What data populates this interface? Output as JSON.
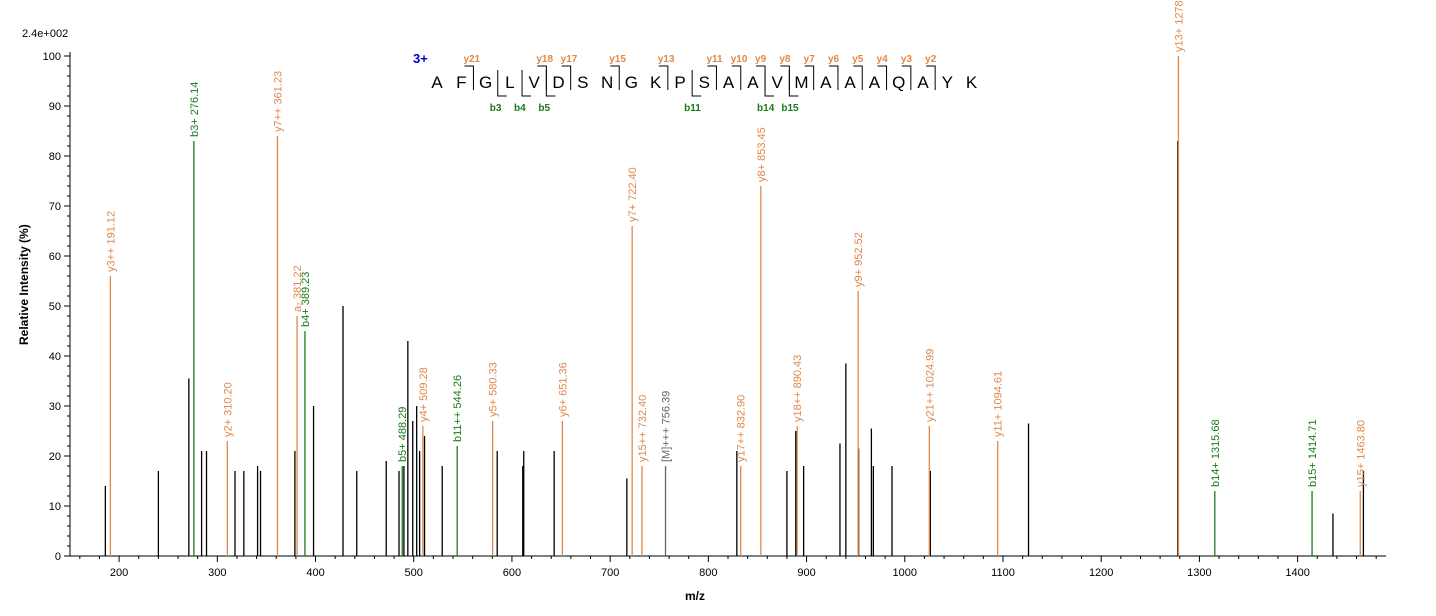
{
  "chart_data": {
    "type": "bar",
    "scale_label": "2.4e+002",
    "xlabel": "m/z",
    "ylabel": "Relative   Intensity (%)",
    "xlim": [
      150,
      1490
    ],
    "ylim": [
      0,
      100
    ],
    "x_ticks_major": [
      200,
      300,
      400,
      500,
      600,
      700,
      800,
      900,
      1000,
      1100,
      1200,
      1300,
      1400
    ],
    "y_ticks_major": [
      0,
      10,
      20,
      30,
      40,
      50,
      60,
      70,
      80,
      90,
      100
    ],
    "colors": {
      "y_ion": "#e0884a",
      "b_ion": "#1a7a1a",
      "other_ion": "#666666",
      "unassigned": "#000000",
      "charge_state": "#0000cc"
    },
    "peptide": {
      "charge": "3+",
      "sequence": [
        "A",
        "F",
        "G",
        "L",
        "V",
        "D",
        "S",
        "N",
        "G",
        "K",
        "P",
        "S",
        "A",
        "A",
        "V",
        "M",
        "A",
        "A",
        "A",
        "Q",
        "A",
        "Y",
        "K"
      ],
      "y_ions": [
        {
          "pos": 2,
          "label": "y21"
        },
        {
          "pos": 5,
          "label": "y18"
        },
        {
          "pos": 6,
          "label": "y17"
        },
        {
          "pos": 8,
          "label": "y15"
        },
        {
          "pos": 10,
          "label": "y13"
        },
        {
          "pos": 12,
          "label": "y11"
        },
        {
          "pos": 13,
          "label": "y10"
        },
        {
          "pos": 14,
          "label": "y9"
        },
        {
          "pos": 15,
          "label": "y8"
        },
        {
          "pos": 16,
          "label": "y7"
        },
        {
          "pos": 17,
          "label": "y6"
        },
        {
          "pos": 18,
          "label": "y5"
        },
        {
          "pos": 19,
          "label": "y4"
        },
        {
          "pos": 20,
          "label": "y3"
        },
        {
          "pos": 21,
          "label": "y2"
        }
      ],
      "b_ions": [
        {
          "pos": 3,
          "label": "b3"
        },
        {
          "pos": 4,
          "label": "b4"
        },
        {
          "pos": 5,
          "label": "b5"
        },
        {
          "pos": 11,
          "label": "b11"
        },
        {
          "pos": 14,
          "label": "b14"
        },
        {
          "pos": 15,
          "label": "b15"
        }
      ]
    },
    "labeled_peaks": [
      {
        "mz": 191.12,
        "intensity": 56,
        "ion": "y",
        "label": "y3++ 191.12"
      },
      {
        "mz": 276.14,
        "intensity": 83,
        "ion": "b",
        "label": "b3+ 276.14"
      },
      {
        "mz": 310.2,
        "intensity": 23,
        "ion": "y",
        "label": "y2+ 310.20"
      },
      {
        "mz": 361.23,
        "intensity": 84,
        "ion": "y",
        "label": "y7++ 361.23"
      },
      {
        "mz": 381.22,
        "intensity": 48,
        "ion": "y",
        "label": "a₇ 381.22"
      },
      {
        "mz": 389.23,
        "intensity": 45,
        "ion": "b",
        "label": "b4+ 389.23"
      },
      {
        "mz": 488.29,
        "intensity": 18,
        "ion": "b",
        "label": "b5+ 488.29"
      },
      {
        "mz": 509.28,
        "intensity": 26,
        "ion": "y",
        "label": "y4+ 509.28"
      },
      {
        "mz": 544.26,
        "intensity": 22,
        "ion": "b",
        "label": "b11++ 544.26"
      },
      {
        "mz": 580.33,
        "intensity": 27,
        "ion": "y",
        "label": "y5+ 580.33"
      },
      {
        "mz": 651.36,
        "intensity": 27,
        "ion": "y",
        "label": "y6+ 651.36"
      },
      {
        "mz": 722.4,
        "intensity": 66,
        "ion": "y",
        "label": "y7+ 722.40"
      },
      {
        "mz": 732.4,
        "intensity": 18,
        "ion": "y",
        "label": "y15++ 732.40"
      },
      {
        "mz": 756.39,
        "intensity": 18,
        "ion": "other",
        "label": "[M]+++ 756.39"
      },
      {
        "mz": 832.9,
        "intensity": 18,
        "ion": "y",
        "label": "y17++ 832.90"
      },
      {
        "mz": 853.45,
        "intensity": 74,
        "ion": "y",
        "label": "y8+ 853.45"
      },
      {
        "mz": 890.43,
        "intensity": 26,
        "ion": "y",
        "label": "y18++ 890.43"
      },
      {
        "mz": 952.52,
        "intensity": 53,
        "ion": "y",
        "label": "y9+ 952.52"
      },
      {
        "mz": 1024.99,
        "intensity": 26,
        "ion": "y",
        "label": "y21++ 1024.99"
      },
      {
        "mz": 1094.61,
        "intensity": 23,
        "ion": "y",
        "label": "y11+ 1094.61"
      },
      {
        "mz": 1278.65,
        "intensity": 100,
        "ion": "y",
        "label": "y13+ 1278.65"
      },
      {
        "mz": 1315.68,
        "intensity": 13,
        "ion": "b",
        "label": "b14+ 1315.68"
      },
      {
        "mz": 1414.71,
        "intensity": 13,
        "ion": "b",
        "label": "b15+ 1414.71"
      },
      {
        "mz": 1463.8,
        "intensity": 13,
        "ion": "y",
        "label": "y15+ 1463.80"
      }
    ],
    "unlabeled_peaks": [
      {
        "mz": 186,
        "intensity": 14
      },
      {
        "mz": 240,
        "intensity": 17
      },
      {
        "mz": 271,
        "intensity": 35.5
      },
      {
        "mz": 284,
        "intensity": 21
      },
      {
        "mz": 289,
        "intensity": 21
      },
      {
        "mz": 318,
        "intensity": 17
      },
      {
        "mz": 327,
        "intensity": 17
      },
      {
        "mz": 341,
        "intensity": 18
      },
      {
        "mz": 344,
        "intensity": 17
      },
      {
        "mz": 379,
        "intensity": 21
      },
      {
        "mz": 398,
        "intensity": 30
      },
      {
        "mz": 428,
        "intensity": 50
      },
      {
        "mz": 442,
        "intensity": 17
      },
      {
        "mz": 472,
        "intensity": 19
      },
      {
        "mz": 485,
        "intensity": 17
      },
      {
        "mz": 490,
        "intensity": 18
      },
      {
        "mz": 494,
        "intensity": 43
      },
      {
        "mz": 499,
        "intensity": 27
      },
      {
        "mz": 503,
        "intensity": 30
      },
      {
        "mz": 506,
        "intensity": 21
      },
      {
        "mz": 511,
        "intensity": 24
      },
      {
        "mz": 529,
        "intensity": 18
      },
      {
        "mz": 585,
        "intensity": 21
      },
      {
        "mz": 611,
        "intensity": 18
      },
      {
        "mz": 612,
        "intensity": 21
      },
      {
        "mz": 643,
        "intensity": 21
      },
      {
        "mz": 717,
        "intensity": 15.5
      },
      {
        "mz": 829,
        "intensity": 21
      },
      {
        "mz": 880,
        "intensity": 17
      },
      {
        "mz": 889,
        "intensity": 25
      },
      {
        "mz": 897,
        "intensity": 18
      },
      {
        "mz": 934,
        "intensity": 22.5
      },
      {
        "mz": 940,
        "intensity": 38.5
      },
      {
        "mz": 953,
        "intensity": 21.5
      },
      {
        "mz": 966,
        "intensity": 25.5
      },
      {
        "mz": 968,
        "intensity": 18
      },
      {
        "mz": 987,
        "intensity": 18
      },
      {
        "mz": 1026,
        "intensity": 17
      },
      {
        "mz": 1126,
        "intensity": 26.5
      },
      {
        "mz": 1278,
        "intensity": 83
      },
      {
        "mz": 1436,
        "intensity": 8.5
      },
      {
        "mz": 1467,
        "intensity": 17
      }
    ]
  }
}
